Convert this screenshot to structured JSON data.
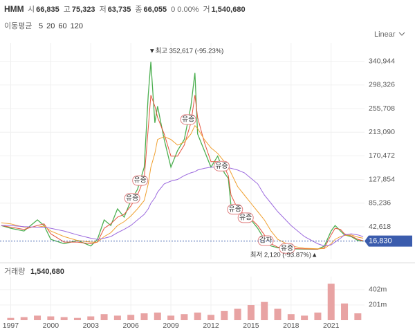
{
  "header": {
    "symbol": "HMM",
    "items": [
      {
        "label": "시",
        "value": "66,835"
      },
      {
        "label": "고",
        "value": "75,323"
      },
      {
        "label": "저",
        "value": "63,735"
      },
      {
        "label": "종",
        "value": "66,055"
      }
    ],
    "change": "0 0.00%",
    "volume_label": "거",
    "volume_value": "1,540,680",
    "ma_title": "이동평균",
    "scale_mode": "Linear"
  },
  "chart_data": [
    {
      "type": "line",
      "x": [
        1996.3,
        1997,
        1998,
        1999,
        1999.5,
        2000,
        2001,
        2002,
        2003,
        2003.5,
        2004,
        2004.5,
        2005,
        2005.5,
        2006,
        2006.5,
        2007,
        2007.3,
        2007.5,
        2007.8,
        2008,
        2008.5,
        2009,
        2009.5,
        2010,
        2010.5,
        2010.8,
        2011,
        2011.5,
        2012,
        2012.5,
        2013,
        2013.3,
        2013.5,
        2014,
        2014.5,
        2015,
        2015.5,
        2016,
        2016.5,
        2017,
        2018,
        2019,
        2020,
        2020.5,
        2021,
        2021.3,
        2021.7,
        2022,
        2022.5,
        2023,
        2023.4
      ],
      "series": [
        {
          "name": "5",
          "color": "#4caf50",
          "values": [
            45000,
            40000,
            35000,
            55000,
            45000,
            20000,
            12000,
            18000,
            8000,
            20000,
            55000,
            45000,
            75000,
            60000,
            90000,
            110000,
            150000,
            280000,
            340000,
            230000,
            260000,
            200000,
            150000,
            180000,
            200000,
            260000,
            320000,
            210000,
            180000,
            150000,
            170000,
            140000,
            130000,
            80000,
            70000,
            60000,
            55000,
            40000,
            20000,
            8000,
            5000,
            3000,
            2500,
            2200,
            8000,
            35000,
            45000,
            35000,
            28000,
            25000,
            18000,
            16830
          ]
        },
        {
          "name": "20",
          "color": "#e5533d",
          "values": [
            45000,
            42000,
            38000,
            45000,
            48000,
            30000,
            15000,
            15000,
            12000,
            15000,
            40000,
            48000,
            60000,
            65000,
            80000,
            100000,
            130000,
            220000,
            280000,
            260000,
            240000,
            210000,
            170000,
            170000,
            190000,
            230000,
            280000,
            240000,
            195000,
            160000,
            160000,
            150000,
            135000,
            100000,
            75000,
            65000,
            57000,
            45000,
            28000,
            12000,
            6000,
            3500,
            2800,
            2400,
            5000,
            28000,
            40000,
            38000,
            30000,
            26000,
            20000,
            17500
          ]
        },
        {
          "name": "60",
          "color": "#f0a030",
          "values": [
            50000,
            48000,
            42000,
            42000,
            44000,
            35000,
            25000,
            18000,
            15000,
            15000,
            25000,
            32000,
            45000,
            52000,
            62000,
            75000,
            90000,
            120000,
            150000,
            175000,
            200000,
            205000,
            200000,
            190000,
            195000,
            210000,
            225000,
            220000,
            200000,
            185000,
            175000,
            160000,
            150000,
            140000,
            115000,
            100000,
            85000,
            70000,
            55000,
            35000,
            20000,
            8000,
            4000,
            3000,
            3500,
            12000,
            20000,
            25000,
            27000,
            28000,
            24000,
            22000
          ]
        },
        {
          "name": "120",
          "color": "#9c6ade",
          "values": [
            45000,
            45000,
            43000,
            42000,
            42000,
            40000,
            35000,
            28000,
            22000,
            20000,
            22000,
            25000,
            32000,
            38000,
            45000,
            55000,
            65000,
            75000,
            85000,
            95000,
            105000,
            120000,
            125000,
            128000,
            135000,
            140000,
            142000,
            145000,
            148000,
            150000,
            150000,
            150000,
            149000,
            148000,
            145000,
            140000,
            130000,
            120000,
            100000,
            85000,
            70000,
            45000,
            25000,
            12000,
            8000,
            10000,
            15000,
            22000,
            28000,
            30000,
            28000,
            25000
          ]
        }
      ],
      "xlim": [
        1996.2,
        2023.5
      ],
      "xticks": [
        1997,
        2000,
        2003,
        2006,
        2009,
        2012,
        2015,
        2018,
        2021
      ],
      "ylim": [
        -16000,
        358000
      ],
      "yticks": [
        {
          "value": 42618,
          "label": "42,618"
        },
        {
          "value": 85236,
          "label": "85,236"
        },
        {
          "value": 127854,
          "label": "127,854"
        },
        {
          "value": 170472,
          "label": "170,472"
        },
        {
          "value": 213090,
          "label": "213,090"
        },
        {
          "value": 255708,
          "label": "255,708"
        },
        {
          "value": 298326,
          "label": "298,326"
        },
        {
          "value": 340944,
          "label": "340,944"
        }
      ],
      "grid": true,
      "last_price": {
        "value": 16830,
        "label": "16,830"
      },
      "last_color": "#3b5cad",
      "max_marker": {
        "x": 2007.5,
        "value": 352617,
        "label": "▼최고 352,617 (-95.23%)"
      },
      "min_marker": {
        "x": 2020.0,
        "label": "최저 2,120 (-93.87%)▲"
      },
      "annotations": [
        {
          "x": 2006.1,
          "text": "유증"
        },
        {
          "x": 2006.7,
          "text": "유증"
        },
        {
          "x": 2010.3,
          "text": "유증"
        },
        {
          "x": 2012.8,
          "text": "유증"
        },
        {
          "x": 2013.8,
          "text": "유증"
        },
        {
          "x": 2014.6,
          "text": "유증"
        },
        {
          "x": 2016.1,
          "text": "감자"
        },
        {
          "x": 2017.7,
          "text": "유증"
        }
      ]
    },
    {
      "type": "bar",
      "title": "거래량",
      "title_value": "1,540,680",
      "x": [
        1997,
        1998,
        1999,
        2000,
        2001,
        2002,
        2003,
        2004,
        2005,
        2006,
        2007,
        2008,
        2009,
        2010,
        2011,
        2012,
        2013,
        2014,
        2015,
        2016,
        2017,
        2018,
        2019,
        2020,
        2021,
        2022,
        2023
      ],
      "values": [
        30000000,
        40000000,
        60000000,
        50000000,
        40000000,
        30000000,
        50000000,
        80000000,
        60000000,
        70000000,
        90000000,
        100000000,
        60000000,
        80000000,
        100000000,
        70000000,
        120000000,
        150000000,
        200000000,
        240000000,
        150000000,
        80000000,
        60000000,
        100000000,
        480000000,
        220000000,
        90000000
      ],
      "color": "#e8a3a3",
      "ylim": [
        0,
        574000000
      ],
      "yticks": [
        {
          "value": 201000000,
          "label": "201m"
        },
        {
          "value": 402000000,
          "label": "402m"
        }
      ],
      "grid": true
    }
  ]
}
